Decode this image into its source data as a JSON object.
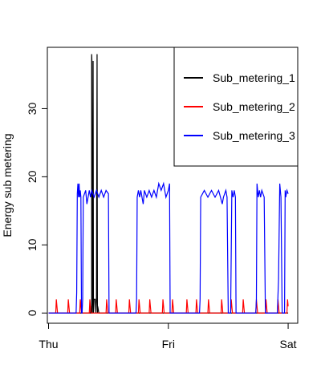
{
  "chart_data": {
    "type": "line",
    "title": "",
    "xlabel": "",
    "ylabel": "Energy sub metering",
    "x_ticks": [
      "Thu",
      "Fri",
      "Sat"
    ],
    "y_ticks": [
      "0",
      "10",
      "20",
      "30"
    ],
    "xlim": [
      -0.01,
      2.08
    ],
    "ylim": [
      -1.5,
      39
    ],
    "grid": false,
    "legend_position": "top-right",
    "colors": {
      "Sub_metering_1": "#000000",
      "Sub_metering_2": "#ff0000",
      "Sub_metering_3": "#0000ff"
    },
    "series": [
      {
        "name": "Sub_metering_1",
        "color": "#000000",
        "points": [
          [
            0.0,
            0
          ],
          [
            0.35,
            0
          ],
          [
            0.35,
            1
          ],
          [
            0.355,
            0
          ],
          [
            0.36,
            0
          ],
          [
            0.36,
            38
          ],
          [
            0.362,
            37
          ],
          [
            0.365,
            0
          ],
          [
            0.368,
            2
          ],
          [
            0.372,
            37
          ],
          [
            0.375,
            0
          ],
          [
            0.38,
            2
          ],
          [
            0.39,
            2
          ],
          [
            0.395,
            0
          ],
          [
            0.4,
            2
          ],
          [
            0.405,
            38
          ],
          [
            0.408,
            0
          ],
          [
            0.41,
            1
          ],
          [
            0.42,
            0
          ],
          [
            2.0,
            0
          ]
        ]
      },
      {
        "name": "Sub_metering_2",
        "color": "#ff0000",
        "points": [
          [
            0.0,
            0
          ],
          [
            0.06,
            0
          ],
          [
            0.065,
            2
          ],
          [
            0.07,
            1
          ],
          [
            0.075,
            0
          ],
          [
            0.16,
            0
          ],
          [
            0.165,
            2
          ],
          [
            0.17,
            1
          ],
          [
            0.175,
            0
          ],
          [
            0.26,
            0
          ],
          [
            0.265,
            2
          ],
          [
            0.27,
            1
          ],
          [
            0.275,
            0
          ],
          [
            0.34,
            0
          ],
          [
            0.345,
            2
          ],
          [
            0.35,
            1
          ],
          [
            0.355,
            0
          ],
          [
            0.48,
            0
          ],
          [
            0.485,
            2
          ],
          [
            0.49,
            1
          ],
          [
            0.495,
            0
          ],
          [
            0.56,
            0
          ],
          [
            0.565,
            2
          ],
          [
            0.57,
            1
          ],
          [
            0.575,
            0
          ],
          [
            0.67,
            0
          ],
          [
            0.675,
            2
          ],
          [
            0.68,
            1
          ],
          [
            0.685,
            0
          ],
          [
            0.75,
            0
          ],
          [
            0.755,
            2
          ],
          [
            0.76,
            1
          ],
          [
            0.765,
            0
          ],
          [
            0.84,
            0
          ],
          [
            0.845,
            2
          ],
          [
            0.85,
            1
          ],
          [
            0.855,
            0
          ],
          [
            0.95,
            0
          ],
          [
            0.955,
            2
          ],
          [
            0.96,
            1
          ],
          [
            0.965,
            0
          ],
          [
            1.03,
            0
          ],
          [
            1.035,
            2
          ],
          [
            1.04,
            1
          ],
          [
            1.045,
            0
          ],
          [
            1.15,
            0
          ],
          [
            1.155,
            2
          ],
          [
            1.16,
            1
          ],
          [
            1.165,
            0
          ],
          [
            1.23,
            0
          ],
          [
            1.235,
            2
          ],
          [
            1.24,
            1
          ],
          [
            1.245,
            0
          ],
          [
            1.33,
            0
          ],
          [
            1.335,
            2
          ],
          [
            1.34,
            1
          ],
          [
            1.345,
            0
          ],
          [
            1.44,
            0
          ],
          [
            1.445,
            2
          ],
          [
            1.45,
            1
          ],
          [
            1.455,
            0
          ],
          [
            1.52,
            0
          ],
          [
            1.525,
            2
          ],
          [
            1.53,
            1
          ],
          [
            1.535,
            0
          ],
          [
            1.62,
            0
          ],
          [
            1.625,
            2
          ],
          [
            1.63,
            1
          ],
          [
            1.635,
            0
          ],
          [
            1.73,
            0
          ],
          [
            1.735,
            2
          ],
          [
            1.74,
            1
          ],
          [
            1.745,
            0
          ],
          [
            1.81,
            0
          ],
          [
            1.815,
            2
          ],
          [
            1.82,
            1
          ],
          [
            1.825,
            0
          ],
          [
            1.91,
            0
          ],
          [
            1.915,
            2
          ],
          [
            1.92,
            1
          ],
          [
            1.925,
            0
          ],
          [
            1.99,
            0
          ],
          [
            1.995,
            2
          ],
          [
            2.0,
            1
          ]
        ]
      },
      {
        "name": "Sub_metering_3",
        "color": "#0000ff",
        "points": [
          [
            0.0,
            0
          ],
          [
            0.23,
            0
          ],
          [
            0.235,
            3
          ],
          [
            0.24,
            17.5
          ],
          [
            0.245,
            19
          ],
          [
            0.25,
            17
          ],
          [
            0.255,
            19
          ],
          [
            0.26,
            17
          ],
          [
            0.265,
            18
          ],
          [
            0.27,
            17
          ],
          [
            0.275,
            0
          ],
          [
            0.28,
            0
          ],
          [
            0.285,
            2
          ],
          [
            0.29,
            17
          ],
          [
            0.31,
            18
          ],
          [
            0.32,
            16
          ],
          [
            0.33,
            17
          ],
          [
            0.34,
            18
          ],
          [
            0.35,
            17
          ],
          [
            0.36,
            18
          ],
          [
            0.38,
            17
          ],
          [
            0.4,
            18
          ],
          [
            0.42,
            17
          ],
          [
            0.44,
            18
          ],
          [
            0.46,
            17
          ],
          [
            0.48,
            18
          ],
          [
            0.5,
            17.5
          ],
          [
            0.505,
            0
          ],
          [
            0.73,
            0
          ],
          [
            0.735,
            2
          ],
          [
            0.74,
            17
          ],
          [
            0.75,
            18
          ],
          [
            0.76,
            17
          ],
          [
            0.77,
            18
          ],
          [
            0.78,
            17
          ],
          [
            0.79,
            16
          ],
          [
            0.8,
            18
          ],
          [
            0.82,
            17
          ],
          [
            0.84,
            18
          ],
          [
            0.86,
            17
          ],
          [
            0.88,
            18
          ],
          [
            0.9,
            17
          ],
          [
            0.92,
            19
          ],
          [
            0.94,
            18
          ],
          [
            0.96,
            19
          ],
          [
            0.98,
            17
          ],
          [
            1.0,
            18
          ],
          [
            1.01,
            19
          ],
          [
            1.015,
            0
          ],
          [
            1.26,
            0
          ],
          [
            1.265,
            2
          ],
          [
            1.27,
            17
          ],
          [
            1.3,
            18
          ],
          [
            1.33,
            17
          ],
          [
            1.36,
            18
          ],
          [
            1.39,
            17
          ],
          [
            1.42,
            18
          ],
          [
            1.45,
            16
          ],
          [
            1.46,
            17
          ],
          [
            1.48,
            18
          ],
          [
            1.49,
            17
          ],
          [
            1.5,
            0
          ],
          [
            1.52,
            0
          ],
          [
            1.53,
            18
          ],
          [
            1.54,
            17
          ],
          [
            1.55,
            18
          ],
          [
            1.56,
            17
          ],
          [
            1.565,
            0
          ],
          [
            1.73,
            0
          ],
          [
            1.735,
            2
          ],
          [
            1.74,
            19
          ],
          [
            1.75,
            17
          ],
          [
            1.76,
            18
          ],
          [
            1.77,
            17
          ],
          [
            1.78,
            18
          ],
          [
            1.8,
            17
          ],
          [
            1.81,
            0
          ],
          [
            1.91,
            0
          ],
          [
            1.92,
            5
          ],
          [
            1.93,
            19
          ],
          [
            1.94,
            17
          ],
          [
            1.95,
            0
          ],
          [
            1.97,
            0
          ],
          [
            1.975,
            18
          ],
          [
            1.98,
            17
          ],
          [
            1.99,
            18
          ],
          [
            2.0,
            17.5
          ]
        ]
      }
    ]
  }
}
